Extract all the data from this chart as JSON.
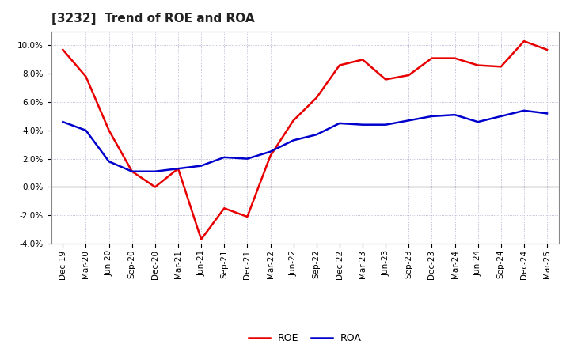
{
  "title": "[3232]  Trend of ROE and ROA",
  "x_labels": [
    "Dec-19",
    "Mar-20",
    "Jun-20",
    "Sep-20",
    "Dec-20",
    "Mar-21",
    "Jun-21",
    "Sep-21",
    "Dec-21",
    "Mar-22",
    "Jun-22",
    "Sep-22",
    "Dec-22",
    "Mar-23",
    "Jun-23",
    "Sep-23",
    "Dec-23",
    "Mar-24",
    "Jun-24",
    "Sep-24",
    "Dec-24",
    "Mar-25"
  ],
  "ROE": [
    9.7,
    7.8,
    4.0,
    1.1,
    0.0,
    1.3,
    -3.7,
    -1.5,
    -2.1,
    2.2,
    4.7,
    6.3,
    8.6,
    9.0,
    7.6,
    7.9,
    9.1,
    9.1,
    8.6,
    8.5,
    10.3,
    9.7
  ],
  "ROA": [
    4.6,
    4.0,
    1.8,
    1.1,
    1.1,
    1.3,
    1.5,
    2.1,
    2.0,
    2.5,
    3.3,
    3.7,
    4.5,
    4.4,
    4.4,
    4.7,
    5.0,
    5.1,
    4.6,
    5.0,
    5.4,
    5.2
  ],
  "roe_color": "#e80000",
  "roa_color": "#0000cc",
  "ylim": [
    -4.0,
    11.0
  ],
  "yticks": [
    -4.0,
    -2.0,
    0.0,
    2.0,
    4.0,
    6.0,
    8.0,
    10.0
  ],
  "background_color": "#ffffff",
  "plot_bg_color": "#ffffff",
  "grid_color": "#aaaacc",
  "line_width": 1.8,
  "title_fontsize": 11,
  "tick_fontsize": 7.5,
  "legend_fontsize": 9
}
